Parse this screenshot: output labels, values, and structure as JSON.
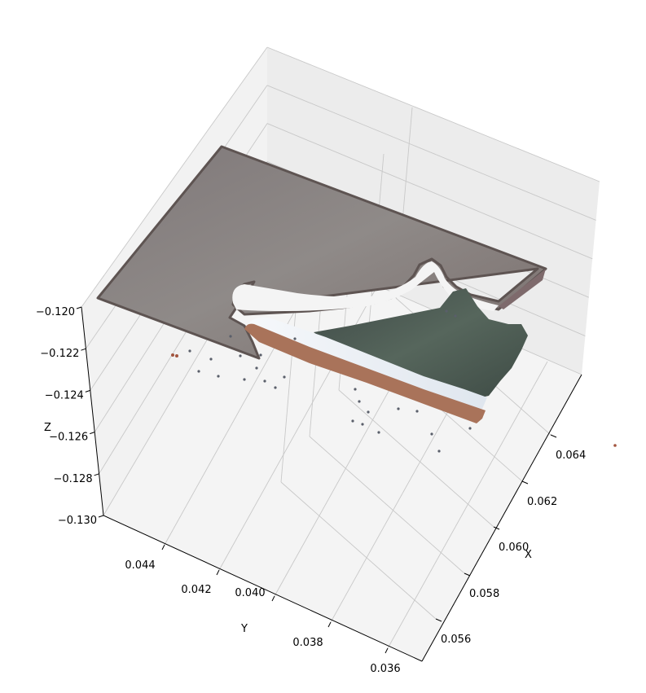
{
  "chart_data": {
    "type": "scatter",
    "subtype": "3d-point-cloud",
    "title": "",
    "xlabel": "X",
    "ylabel": "Y",
    "zlabel": "Z",
    "x_ticks": [
      "0.056",
      "0.058",
      "0.060",
      "0.062",
      "0.064"
    ],
    "y_ticks": [
      "0.036",
      "0.038",
      "0.040",
      "0.042",
      "0.044"
    ],
    "z_ticks": [
      "−0.130",
      "−0.128",
      "−0.126",
      "−0.124",
      "−0.122",
      "−0.120"
    ],
    "grid": true,
    "legend": "none",
    "colors": {
      "pane": "#f2f2f2",
      "grid": "#c8c8c8",
      "surface": "#8a8483",
      "surface_edge": "#5e5452",
      "shoe_upper": "#4a5a52",
      "shoe_midsole": "#e8eef4",
      "shoe_sole": "#a9735a",
      "outlier": "#5a5f6a"
    },
    "objects": [
      {
        "name": "flat surface",
        "color": "#8a8483"
      },
      {
        "name": "shoe upper",
        "color": "#4a5a52"
      },
      {
        "name": "shoe midsole",
        "color": "#e8eef4"
      },
      {
        "name": "shoe outsole",
        "color": "#a9735a"
      }
    ]
  }
}
